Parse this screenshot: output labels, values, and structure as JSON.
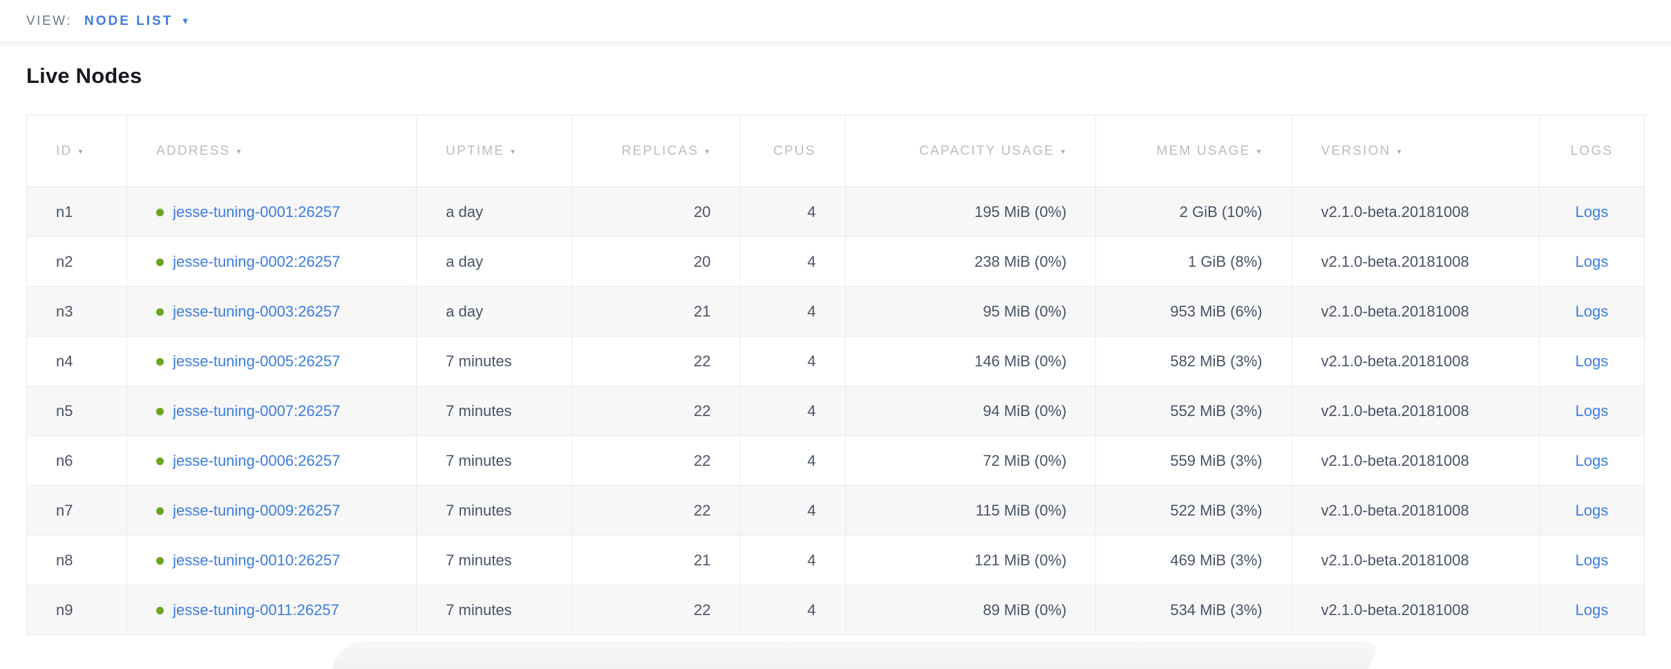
{
  "view_bar": {
    "label": "VIEW:",
    "selected_view": "NODE LIST",
    "caret_icon": "▾"
  },
  "page": {
    "title": "Live Nodes"
  },
  "icons": {
    "sort_arrow": "▾",
    "node_status": "live-green-dot"
  },
  "colors": {
    "accent_blue": "#3c7ce0",
    "live_green": "#6ca41e",
    "header_gray": "#babcc1",
    "cell_text": "#485365",
    "alt_row_bg": "#f7f7f8"
  },
  "table": {
    "columns": [
      {
        "key": "id",
        "label": "ID",
        "sortable": true,
        "align": "left"
      },
      {
        "key": "address",
        "label": "ADDRESS",
        "sortable": true,
        "align": "left"
      },
      {
        "key": "uptime",
        "label": "UPTIME",
        "sortable": true,
        "align": "left"
      },
      {
        "key": "replicas",
        "label": "REPLICAS",
        "sortable": true,
        "align": "right"
      },
      {
        "key": "cpus",
        "label": "CPUS",
        "sortable": false,
        "align": "right"
      },
      {
        "key": "capacity_usage",
        "label": "CAPACITY USAGE",
        "sortable": true,
        "align": "right"
      },
      {
        "key": "mem_usage",
        "label": "MEM USAGE",
        "sortable": true,
        "align": "right"
      },
      {
        "key": "version",
        "label": "VERSION",
        "sortable": true,
        "align": "left"
      },
      {
        "key": "logs",
        "label": "LOGS",
        "sortable": false,
        "align": "center"
      }
    ],
    "rows": [
      {
        "id": "n1",
        "address": "jesse-tuning-0001:26257",
        "uptime": "a day",
        "replicas": "20",
        "cpus": "4",
        "capacity_usage": "195 MiB (0%)",
        "mem_usage": "2 GiB (10%)",
        "version": "v2.1.0-beta.20181008",
        "logs": "Logs"
      },
      {
        "id": "n2",
        "address": "jesse-tuning-0002:26257",
        "uptime": "a day",
        "replicas": "20",
        "cpus": "4",
        "capacity_usage": "238 MiB (0%)",
        "mem_usage": "1 GiB (8%)",
        "version": "v2.1.0-beta.20181008",
        "logs": "Logs"
      },
      {
        "id": "n3",
        "address": "jesse-tuning-0003:26257",
        "uptime": "a day",
        "replicas": "21",
        "cpus": "4",
        "capacity_usage": "95 MiB (0%)",
        "mem_usage": "953 MiB (6%)",
        "version": "v2.1.0-beta.20181008",
        "logs": "Logs"
      },
      {
        "id": "n4",
        "address": "jesse-tuning-0005:26257",
        "uptime": "7 minutes",
        "replicas": "22",
        "cpus": "4",
        "capacity_usage": "146 MiB (0%)",
        "mem_usage": "582 MiB (3%)",
        "version": "v2.1.0-beta.20181008",
        "logs": "Logs"
      },
      {
        "id": "n5",
        "address": "jesse-tuning-0007:26257",
        "uptime": "7 minutes",
        "replicas": "22",
        "cpus": "4",
        "capacity_usage": "94 MiB (0%)",
        "mem_usage": "552 MiB (3%)",
        "version": "v2.1.0-beta.20181008",
        "logs": "Logs"
      },
      {
        "id": "n6",
        "address": "jesse-tuning-0006:26257",
        "uptime": "7 minutes",
        "replicas": "22",
        "cpus": "4",
        "capacity_usage": "72 MiB (0%)",
        "mem_usage": "559 MiB (3%)",
        "version": "v2.1.0-beta.20181008",
        "logs": "Logs"
      },
      {
        "id": "n7",
        "address": "jesse-tuning-0009:26257",
        "uptime": "7 minutes",
        "replicas": "22",
        "cpus": "4",
        "capacity_usage": "115 MiB (0%)",
        "mem_usage": "522 MiB (3%)",
        "version": "v2.1.0-beta.20181008",
        "logs": "Logs"
      },
      {
        "id": "n8",
        "address": "jesse-tuning-0010:26257",
        "uptime": "7 minutes",
        "replicas": "21",
        "cpus": "4",
        "capacity_usage": "121 MiB (0%)",
        "mem_usage": "469 MiB (3%)",
        "version": "v2.1.0-beta.20181008",
        "logs": "Logs"
      },
      {
        "id": "n9",
        "address": "jesse-tuning-0011:26257",
        "uptime": "7 minutes",
        "replicas": "22",
        "cpus": "4",
        "capacity_usage": "89 MiB (0%)",
        "mem_usage": "534 MiB (3%)",
        "version": "v2.1.0-beta.20181008",
        "logs": "Logs"
      }
    ]
  }
}
